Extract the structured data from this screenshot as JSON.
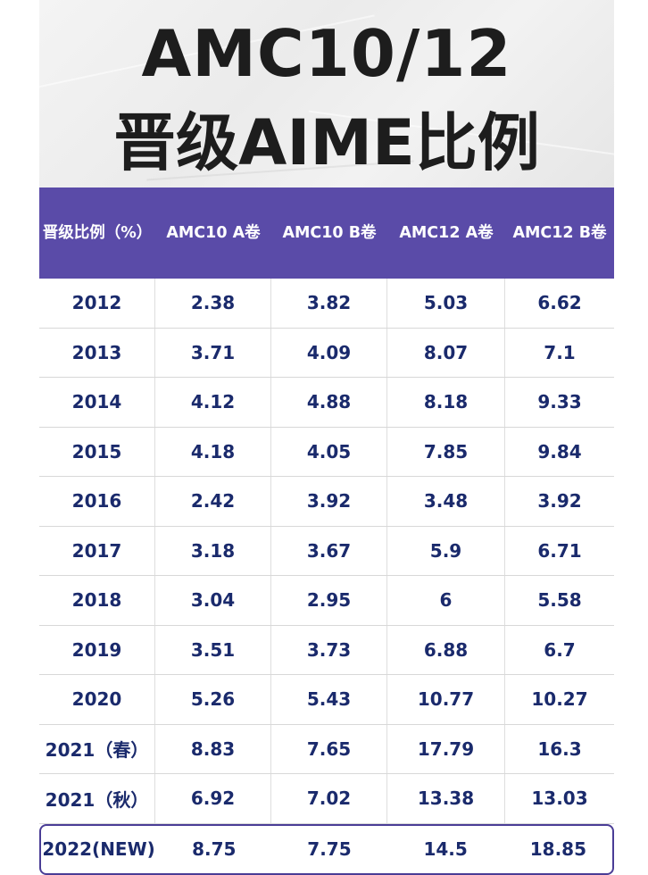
{
  "title": {
    "line1": "AMC10/12",
    "line2": "晋级AIME比例"
  },
  "table": {
    "headers": [
      "晋级比例（%）",
      "AMC10 A卷",
      "AMC10 B卷",
      "AMC12 A卷",
      "AMC12 B卷"
    ],
    "rows": [
      [
        "2012",
        "2.38",
        "3.82",
        "5.03",
        "6.62"
      ],
      [
        "2013",
        "3.71",
        "4.09",
        "8.07",
        "7.1"
      ],
      [
        "2014",
        "4.12",
        "4.88",
        "8.18",
        "9.33"
      ],
      [
        "2015",
        "4.18",
        "4.05",
        "7.85",
        "9.84"
      ],
      [
        "2016",
        "2.42",
        "3.92",
        "3.48",
        "3.92"
      ],
      [
        "2017",
        "3.18",
        "3.67",
        "5.9",
        "6.71"
      ],
      [
        "2018",
        "3.04",
        "2.95",
        "6",
        "5.58"
      ],
      [
        "2019",
        "3.51",
        "3.73",
        "6.88",
        "6.7"
      ],
      [
        "2020",
        "5.26",
        "5.43",
        "10.77",
        "10.27"
      ],
      [
        "2021（春）",
        "8.83",
        "7.65",
        "17.79",
        "16.3"
      ],
      [
        "2021（秋）",
        "6.92",
        "7.02",
        "13.38",
        "13.03"
      ],
      [
        "2022(NEW)",
        "8.75",
        "7.75",
        "14.5",
        "18.85"
      ]
    ],
    "highlight_row": "2022(NEW)"
  },
  "colors": {
    "header_bg": "#5a4ba8",
    "header_text": "#ffffff",
    "cell_text": "#1a2a6c",
    "title_text": "#1d1d1d"
  }
}
